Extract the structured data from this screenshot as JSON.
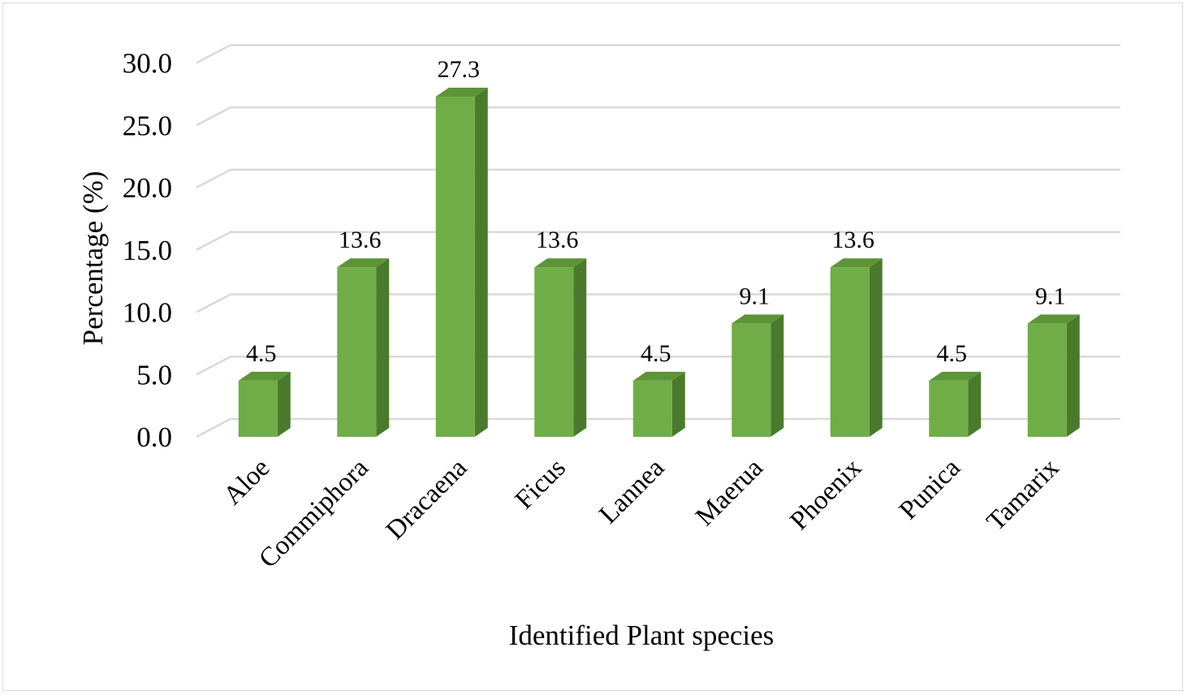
{
  "chart_data": {
    "type": "bar",
    "style": "3d-column",
    "categories": [
      "Aloe",
      "Commiphora",
      "Dracaena",
      "Ficus",
      "Lannea",
      "Maerua",
      "Phoenix",
      "Punica",
      "Tamarix"
    ],
    "values": [
      4.5,
      13.6,
      27.3,
      13.6,
      4.5,
      9.1,
      13.6,
      4.5,
      9.1
    ],
    "data_labels": [
      "4.5",
      "13.6",
      "27.3",
      "13.6",
      "4.5",
      "9.1",
      "13.6",
      "4.5",
      "9.1"
    ],
    "y_ticks": [
      "0.0",
      "5.0",
      "10.0",
      "15.0",
      "20.0",
      "25.0",
      "30.0"
    ],
    "xlabel": "Identified Plant species",
    "ylabel": "Percentage (%)",
    "ylim": [
      0,
      30
    ],
    "grid": true,
    "legend": false,
    "colors": {
      "bar_front": "#70ad47",
      "bar_top": "#5d9438",
      "bar_side": "#4a7a2b",
      "gridline": "#d9d9d9",
      "border": "#d9d9d9"
    }
  }
}
